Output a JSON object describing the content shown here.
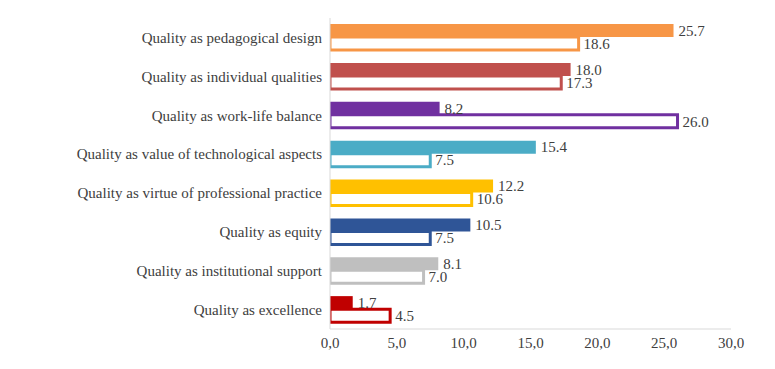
{
  "chart_data": {
    "type": "bar",
    "orientation": "horizontal",
    "data_labels": true,
    "grid": false,
    "categories": [
      "Quality as pedagogical design",
      "Quality as individual qualities",
      "Quality as work-life balance",
      "Quality as value of technological aspects",
      "Quality as virtue of professional practice",
      "Quality as equity",
      "Quality as institutional support",
      "Quality as excellence"
    ],
    "series": [
      {
        "colors": [
          "#f79646",
          "#c0504d",
          "#7030a0",
          "#4bacc6",
          "#ffc000",
          "#2f5597",
          "#bfbfbf",
          "#c00000"
        ],
        "values": [
          25.7,
          18.0,
          8.2,
          15.4,
          12.2,
          10.5,
          8.1,
          1.7
        ],
        "value_labels": [
          "25.7",
          "18.0",
          "8.2",
          "15.4",
          "12.2",
          "10.5",
          "8.1",
          "1.7"
        ]
      },
      {
        "colors": [
          "#f79646",
          "#c0504d",
          "#7030a0",
          "#4bacc6",
          "#ffc000",
          "#2f5597",
          "#bfbfbf",
          "#c00000"
        ],
        "marker": "hollow",
        "values": [
          18.6,
          17.3,
          26.0,
          7.5,
          10.6,
          7.5,
          7.0,
          4.5
        ],
        "value_labels": [
          "18.6",
          "17.3",
          "26.0",
          "7.5",
          "10.6",
          "7.5",
          "7.0",
          "4.5"
        ]
      }
    ],
    "xlim": [
      0,
      30
    ],
    "xticks": [
      {
        "value": 0,
        "label": "0,0"
      },
      {
        "value": 5,
        "label": "5,0"
      },
      {
        "value": 10,
        "label": "10,0"
      },
      {
        "value": 15,
        "label": "15,0"
      },
      {
        "value": 20,
        "label": "20,0"
      },
      {
        "value": 25,
        "label": "25,0"
      },
      {
        "value": 30,
        "label": "30,0"
      }
    ]
  }
}
